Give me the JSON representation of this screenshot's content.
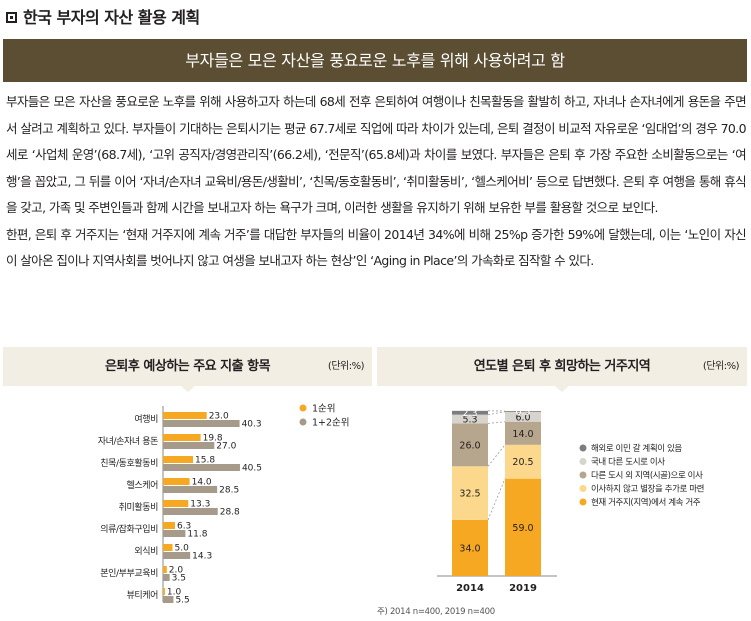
{
  "section": {
    "title": "한국 부자의 자산 활용 계획"
  },
  "banner": {
    "text": "부자들은 모은 자산을 풍요로운 노후를 위해 사용하려고 함"
  },
  "paragraphs": [
    "부자들은 모은 자산을 풍요로운 노후를 위해 사용하고자 하는데 68세 전후 은퇴하여 여행이나 친목활동을 활발히 하고, 자녀나 손자녀에게 용돈을 주면서 살려고 계획하고 있다. 부자들이 기대하는 은퇴시기는 평균 67.7세로 직업에 따라 차이가 있는데, 은퇴 결정이 비교적 자유로운 ‘임대업’의 경우 70.0세로 ‘사업체 운영’(68.7세), ‘고위 공직자/경영관리직’(66.2세), ‘전문직’(65.8세)과 차이를 보였다. 부자들은 은퇴 후 가장 주요한 소비활동으로는 ‘여행’을 꼽았고, 그 뒤를 이어 ‘자녀/손자녀 교육비/용돈/생활비’, ‘친목/동호활동비’, ‘취미활동비’, ‘헬스케어비’ 등으로 답변했다. 은퇴 후 여행을 통해 휴식을 갖고, 가족 및 주변인들과 함께 시간을 보내고자 하는 욕구가 크며, 이러한 생활을 유지하기 위해 보유한 부를 활용할 것으로 보인다.",
    "한편, 은퇴 후 거주지는 ‘현재 거주지에 계속 거주’를 대답한 부자들의 비율이 2014년 34%에 비해 25%p 증가한 59%에 달했는데, 이는 ‘노인이 자신이 살아온 집이나 지역사회를 벗어나지 않고 여생을 보내고자 하는 현상’인 ‘Aging in Place’의 가속화로 짐작할 수 있다."
  ],
  "chart_data": [
    {
      "type": "bar",
      "orientation": "horizontal",
      "title": "은퇴후 예상하는 주요 지출 항목",
      "unit": "(단위:%)",
      "categories": [
        "여행비",
        "자녀/손자녀 용돈",
        "친목/동호활동비",
        "헬스케어",
        "취미활동비",
        "의류/잡화구입비",
        "외식비",
        "본인/부부교육비",
        "뷰티케어"
      ],
      "series": [
        {
          "name": "1순위",
          "color": "#f7a823",
          "values": [
            23.0,
            19.8,
            15.8,
            14.0,
            13.3,
            6.3,
            5.0,
            2.0,
            1.0
          ],
          "labels": [
            "23.0",
            "19.8",
            "15.8",
            "14.0",
            "13.3",
            "6.3",
            "5.0",
            "2.0",
            "1.0"
          ]
        },
        {
          "name": "1+2순위",
          "color": "#a69a8a",
          "values": [
            40.3,
            27.0,
            40.5,
            28.5,
            28.8,
            11.8,
            14.3,
            3.5,
            5.5
          ],
          "labels": [
            "40.3",
            "27.0",
            "40.5",
            "28.5",
            "28.8",
            "11.8",
            "14.3",
            "3.5",
            "5.5"
          ]
        }
      ],
      "legend_position": "top-right"
    },
    {
      "type": "bar",
      "stacked": true,
      "title": "연도별 은퇴 후 희망하는 거주지역",
      "unit": "(단위:%)",
      "categories": [
        "2014",
        "2019"
      ],
      "series": [
        {
          "name": "현재 거주지(지역)에서 계속 거주",
          "color": "#f7a823",
          "label_color": "#231f20",
          "values": [
            34.0,
            59.0
          ],
          "labels": [
            "34.0",
            "59.0"
          ]
        },
        {
          "name": "이사하지 않고 별장을 추가로 마련",
          "color": "#fcd88c",
          "label_color": "#231f20",
          "values": [
            32.5,
            20.5
          ],
          "labels": [
            "32.5",
            "20.5"
          ]
        },
        {
          "name": "다른 도시 외 지역(시골)으로 이사",
          "color": "#b5a68d",
          "label_color": "#231f20",
          "values": [
            26.0,
            14.0
          ],
          "labels": [
            "26.0",
            "14.0"
          ]
        },
        {
          "name": "국내 다른 도시로 이사",
          "color": "#d7d3cd",
          "label_color": "#231f20",
          "values": [
            5.3,
            6.0
          ],
          "labels": [
            "5.3",
            "6.0"
          ]
        },
        {
          "name": "해외로 이민 갈 계획이 있음",
          "color": "#7d7d7d",
          "label_color": "#ffffff",
          "values": [
            2.3,
            0.5
          ],
          "labels": [
            "2.3",
            "0.5"
          ]
        }
      ],
      "legend_position": "right",
      "note": "주) 2014 n=400, 2019 n=400"
    }
  ]
}
